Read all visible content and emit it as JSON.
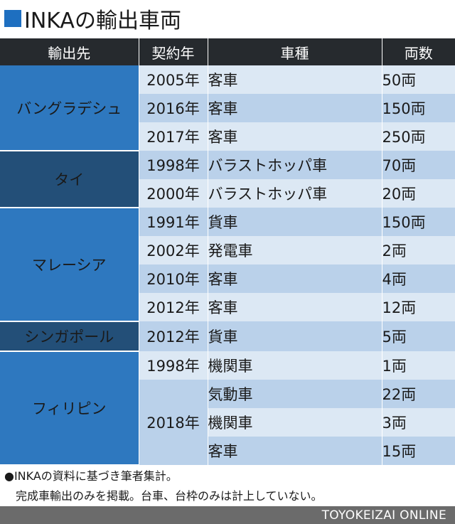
{
  "title": "INKAの輸出車両",
  "table": {
    "headers": [
      "輸出先",
      "契約年",
      "車種",
      "両数"
    ],
    "groups": [
      {
        "country": "バングラデシュ",
        "style": "blue",
        "rows": [
          {
            "year": "2005年",
            "type": "客車",
            "count": "50両"
          },
          {
            "year": "2016年",
            "type": "客車",
            "count": "150両"
          },
          {
            "year": "2017年",
            "type": "客車",
            "count": "250両"
          }
        ]
      },
      {
        "country": "タイ",
        "style": "dark",
        "rows": [
          {
            "year": "1998年",
            "type": "バラストホッパ車",
            "count": "70両"
          },
          {
            "year": "2000年",
            "type": "バラストホッパ車",
            "count": "20両"
          }
        ]
      },
      {
        "country": "マレーシア",
        "style": "blue",
        "rows": [
          {
            "year": "1991年",
            "type": "貨車",
            "count": "150両"
          },
          {
            "year": "2002年",
            "type": "発電車",
            "count": "2両"
          },
          {
            "year": "2010年",
            "type": "客車",
            "count": "4両"
          },
          {
            "year": "2012年",
            "type": "客車",
            "count": "12両"
          }
        ]
      },
      {
        "country": "シンガポール",
        "style": "dark",
        "rows": [
          {
            "year": "2012年",
            "type": "貨車",
            "count": "5両"
          }
        ]
      },
      {
        "country": "フィリピン",
        "style": "blue",
        "rows": [
          {
            "year": "1998年",
            "type": "機関車",
            "count": "1両"
          },
          {
            "year": "2018年",
            "year_rowspan": 3,
            "type": "気動車",
            "count": "22両"
          },
          {
            "type": "機関車",
            "count": "3両"
          },
          {
            "type": "客車",
            "count": "15両"
          }
        ]
      }
    ]
  },
  "notes": {
    "line1": "●INKAの資料に基づき筆者集計。",
    "line2": "完成車輸出のみを掲載。台車、台枠のみは計上していない。"
  },
  "footer": "TOYOKEIZAI ONLINE"
}
